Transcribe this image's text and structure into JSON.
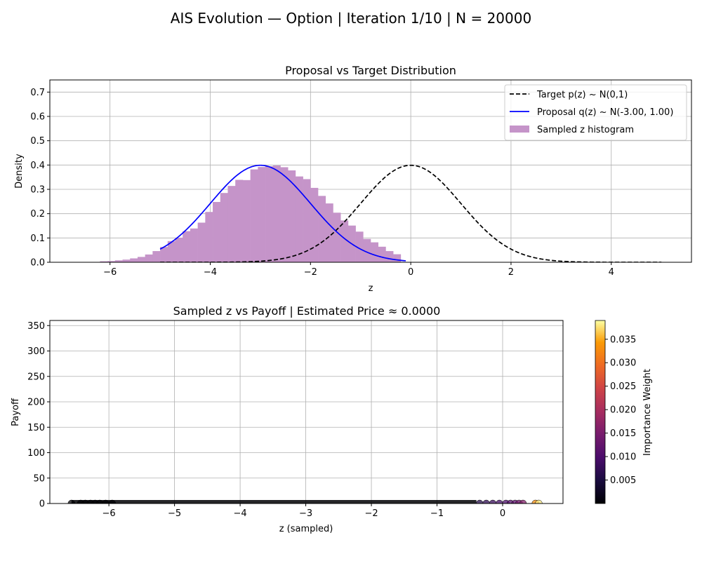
{
  "figure": {
    "suptitle": "AIS Evolution — Option | Iteration 1/10 | N = 20000"
  },
  "chart_data": [
    {
      "type": "line",
      "title": "Proposal vs Target Distribution",
      "xlabel": "z",
      "ylabel": "Density",
      "xlim": [
        -7.2,
        5.6
      ],
      "ylim": [
        0,
        0.75
      ],
      "xticks": [
        "-6",
        "-4",
        "-2",
        "0",
        "2",
        "4"
      ],
      "xtick_values": [
        -6,
        -4,
        -2,
        0,
        2,
        4
      ],
      "yticks": [
        "0.0",
        "0.1",
        "0.2",
        "0.3",
        "0.4",
        "0.5",
        "0.6",
        "0.7"
      ],
      "ytick_values": [
        0,
        0.1,
        0.2,
        0.3,
        0.4,
        0.5,
        0.6,
        0.7
      ],
      "grid": true,
      "legend_position": "top-right",
      "series": [
        {
          "name": "Target p(z) ~ N(0,1)",
          "kind": "line",
          "style": "dashed",
          "color": "#000000",
          "mean": 0.0,
          "std": 1.0,
          "x_range": [
            -5,
            5
          ]
        },
        {
          "name": "Proposal q(z) ~ N(-3.00, 1.00)",
          "kind": "line",
          "style": "solid",
          "color": "#0000ff",
          "mean": -3.0,
          "std": 1.0,
          "x_range": [
            -5,
            -0.1
          ]
        },
        {
          "name": "Sampled z histogram",
          "kind": "histogram",
          "color": "#c594c9",
          "bin_width": 0.15,
          "bin_start": -6.2,
          "values": [
            0.004,
            0.005,
            0.008,
            0.011,
            0.016,
            0.022,
            0.032,
            0.046,
            0.063,
            0.087,
            0.101,
            0.128,
            0.139,
            0.163,
            0.207,
            0.248,
            0.285,
            0.314,
            0.339,
            0.338,
            0.382,
            0.392,
            0.395,
            0.398,
            0.391,
            0.378,
            0.353,
            0.342,
            0.306,
            0.273,
            0.242,
            0.204,
            0.172,
            0.151,
            0.126,
            0.096,
            0.082,
            0.064,
            0.046,
            0.033
          ]
        }
      ],
      "legend": [
        {
          "label": "Target p(z) ~ N(0,1)"
        },
        {
          "label": "Proposal q(z) ~ N(-3.00, 1.00)"
        },
        {
          "label": "Sampled z histogram"
        }
      ]
    },
    {
      "type": "scatter",
      "title": "Sampled z vs Payoff | Estimated Price ≈ 0.0000",
      "xlabel": "z (sampled)",
      "ylabel": "Payoff",
      "xlim": [
        -6.9,
        0.92
      ],
      "ylim": [
        0,
        360
      ],
      "xticks": [
        "-6",
        "-5",
        "-4",
        "-3",
        "-2",
        "-1",
        "0"
      ],
      "xtick_values": [
        -6,
        -5,
        -4,
        -3,
        -2,
        -1,
        0
      ],
      "yticks": [
        "0",
        "50",
        "100",
        "150",
        "200",
        "250",
        "300",
        "350"
      ],
      "ytick_values": [
        0,
        50,
        100,
        150,
        200,
        250,
        300,
        350
      ],
      "grid": true,
      "payoff_all_samples": 0,
      "sample_z_range": [
        -6.57,
        0.55
      ],
      "colorbar": {
        "label": "Importance Weight",
        "min": 0.0,
        "max": 0.039,
        "ticks": [
          "0.005",
          "0.010",
          "0.015",
          "0.020",
          "0.025",
          "0.030",
          "0.035"
        ],
        "tick_values": [
          0.005,
          0.01,
          0.015,
          0.02,
          0.025,
          0.03,
          0.035
        ],
        "colormap": "inferno"
      },
      "points": [
        {
          "z": -6.57,
          "payoff": 0,
          "weight": 0.0
        },
        {
          "z": -6.43,
          "payoff": 0,
          "weight": 0.0
        },
        {
          "z": -6.36,
          "payoff": 0,
          "weight": 0.0
        },
        {
          "z": -6.28,
          "payoff": 0,
          "weight": 0.0
        },
        {
          "z": -6.21,
          "payoff": 0,
          "weight": 0.0
        },
        {
          "z": -6.14,
          "payoff": 0,
          "weight": 0.0
        },
        {
          "z": -6.05,
          "payoff": 0,
          "weight": 0.0
        },
        {
          "z": -5.95,
          "payoff": 0,
          "weight": 0.0
        },
        {
          "z": -0.35,
          "payoff": 0,
          "weight": 0.006
        },
        {
          "z": -0.25,
          "payoff": 0,
          "weight": 0.007
        },
        {
          "z": -0.15,
          "payoff": 0,
          "weight": 0.008
        },
        {
          "z": -0.05,
          "payoff": 0,
          "weight": 0.009
        },
        {
          "z": 0.05,
          "payoff": 0,
          "weight": 0.01
        },
        {
          "z": 0.12,
          "payoff": 0,
          "weight": 0.011
        },
        {
          "z": 0.19,
          "payoff": 0,
          "weight": 0.012
        },
        {
          "z": 0.25,
          "payoff": 0,
          "weight": 0.014
        },
        {
          "z": 0.31,
          "payoff": 0,
          "weight": 0.016
        },
        {
          "z": 0.5,
          "payoff": 0,
          "weight": 0.033
        },
        {
          "z": 0.55,
          "payoff": 0,
          "weight": 0.038
        }
      ]
    }
  ]
}
